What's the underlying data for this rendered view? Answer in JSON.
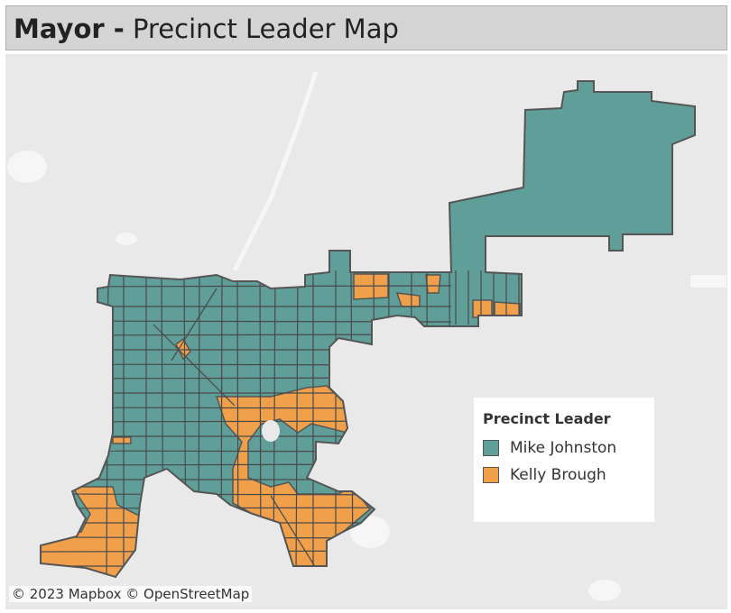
{
  "header": {
    "title_bold": "Mayor -",
    "title": "Precinct Leader Map"
  },
  "legend": {
    "title": "Precinct Leader",
    "items": [
      {
        "label": "Mike Johnston",
        "color": "#5f9e99"
      },
      {
        "label": "Kelly Brough",
        "color": "#f0a04b"
      }
    ]
  },
  "attribution": "© 2023 Mapbox © OpenStreetMap"
}
